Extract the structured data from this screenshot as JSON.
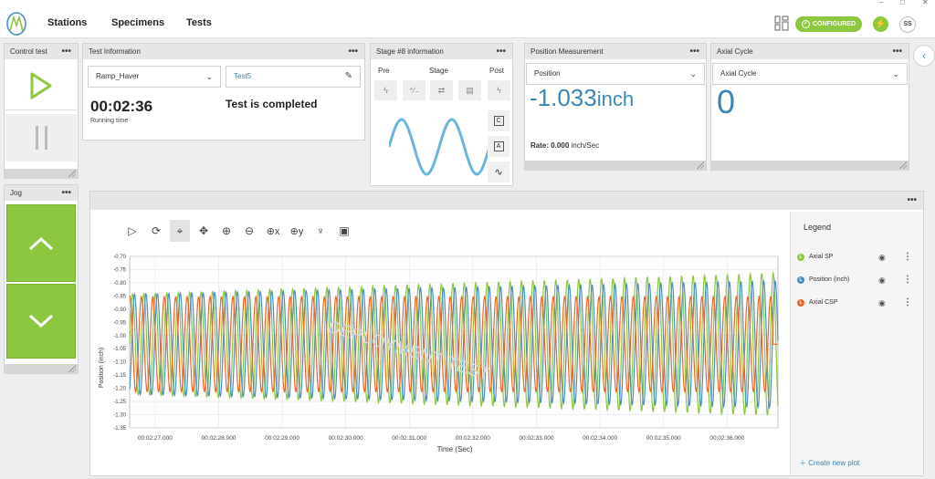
{
  "window": {
    "minimize": "–",
    "maximize": "□",
    "close": "✕"
  },
  "nav": {
    "items": [
      "Stations",
      "Specimens",
      "Tests"
    ],
    "status": "CONFIGURED",
    "user_initials": "SS"
  },
  "control_test": {
    "title": "Control test"
  },
  "jog": {
    "title": "Jog"
  },
  "test_info": {
    "title": "Test Information",
    "procedure": "Ramp_Haver",
    "test_name": "Test5",
    "running_time": "00:02:36",
    "running_time_label": "Running time",
    "status": "Test is completed"
  },
  "stage_info": {
    "title": "Stage #8 information",
    "pre_label": "Pre",
    "stage_label": "Stage",
    "post_label": "Post",
    "side_c": "C",
    "side_a": "A"
  },
  "position_measurement": {
    "title": "Position Measurement",
    "selected": "Position",
    "value": "-1.033",
    "unit": "inch",
    "rate_label": "Rate:",
    "rate_value": "0.000",
    "rate_unit": "inch/Sec"
  },
  "axial_cycle": {
    "title": "Axial Cycle",
    "selected": "Axial Cycle",
    "value": "0"
  },
  "legend": {
    "title": "Legend",
    "items": [
      {
        "name": "Axial SP",
        "color": "#8dc63f",
        "marker": "L"
      },
      {
        "name": "Position (inch)",
        "color": "#4a90c2",
        "marker": "L"
      },
      {
        "name": "Axial CSP",
        "color": "#f26522",
        "marker": "L"
      }
    ],
    "create": "Create new plot"
  },
  "chart_data": {
    "type": "line",
    "xlabel": "Time (Sec)",
    "ylabel": "Position (inch)",
    "watermark": "DEPLOYMENT TEST",
    "ylim": [
      -1.35,
      -0.7
    ],
    "xlim": [
      146.6,
      156.8
    ],
    "y_ticks": [
      "-0.70",
      "-0.75",
      "-0.80",
      "-0.85",
      "-0.90",
      "-0.95",
      "-1.00",
      "-1.05",
      "-1.10",
      "-1.15",
      "-1.20",
      "-1.25",
      "-1.30",
      "-1.35"
    ],
    "x_ticks": [
      {
        "t": 147,
        "label": "00:02:27.000"
      },
      {
        "t": 148,
        "label": "00:02:28.000"
      },
      {
        "t": 149,
        "label": "00:02:29.000"
      },
      {
        "t": 150,
        "label": "00:02:30.000"
      },
      {
        "t": 151,
        "label": "00:02:31.000"
      },
      {
        "t": 152,
        "label": "00:02:32.000"
      },
      {
        "t": 153,
        "label": "00:02:33.000"
      },
      {
        "t": 154,
        "label": "00:02:34.000"
      },
      {
        "t": 155,
        "label": "00:02:35.000"
      },
      {
        "t": 156,
        "label": "00:02:36.000"
      }
    ],
    "series": [
      {
        "name": "Axial SP",
        "color": "#8dc63f",
        "center": -1.033,
        "amp_start": 0.19,
        "amp_end": 0.27,
        "period_s": 0.18,
        "phase": 0.0
      },
      {
        "name": "Position (inch)",
        "color": "#4a90c2",
        "center": -1.033,
        "amp_start": 0.19,
        "amp_end": 0.24,
        "period_s": 0.18,
        "phase": -1.1
      },
      {
        "name": "Axial CSP",
        "color": "#f26522",
        "center": -1.033,
        "amp_start": 0.18,
        "amp_end": 0.18,
        "period_s": 0.18,
        "phase": 1.4,
        "end_hold": -1.033
      }
    ]
  }
}
